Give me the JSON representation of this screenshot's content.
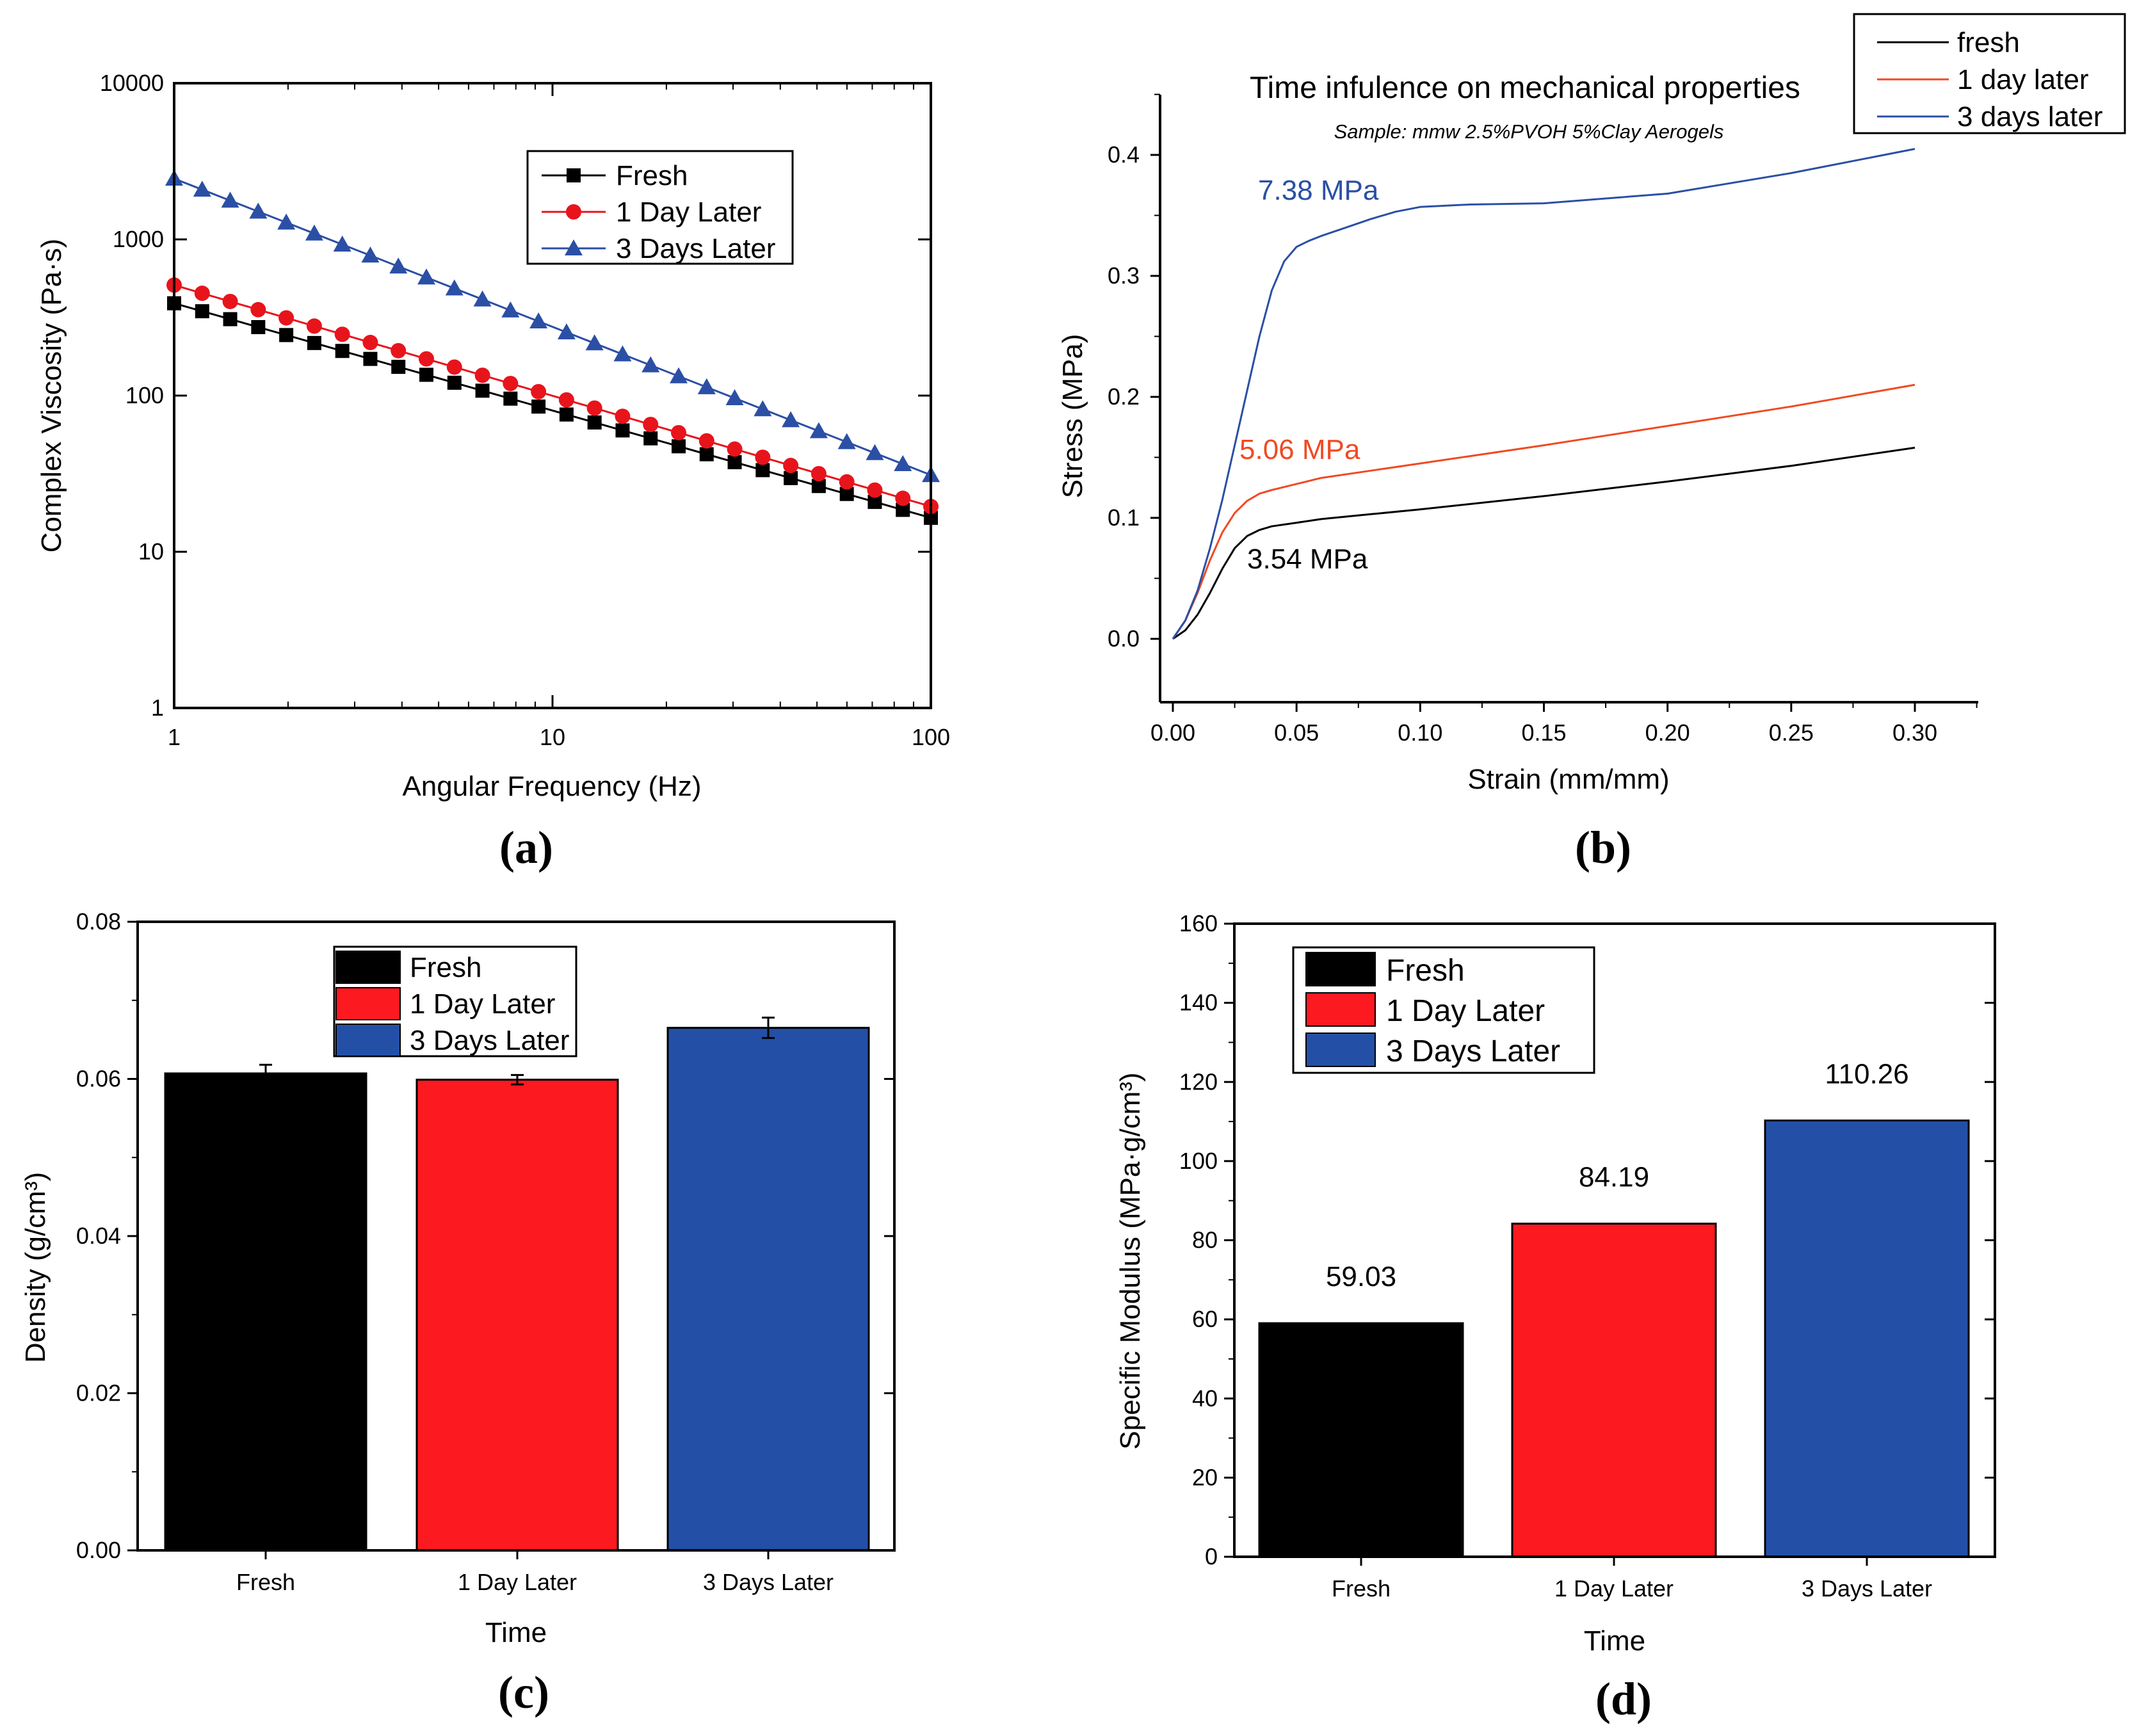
{
  "chart_data": [
    {
      "id": "a",
      "type": "line",
      "panel_label": "(a)",
      "title": "",
      "xlabel": "Angular Frequency (Hz)",
      "ylabel": "Complex Viscosity (Pa·s)",
      "xscale": "log",
      "yscale": "log",
      "xlim": [
        1,
        100
      ],
      "ylim": [
        1,
        10000
      ],
      "xticks": [
        "1",
        "10",
        "100"
      ],
      "yticks": [
        "1",
        "10",
        "100",
        "1000",
        "10000"
      ],
      "legend_position": "top-right",
      "series": [
        {
          "name": "Fresh",
          "marker": "square",
          "color": "#000000",
          "start": 390,
          "end": 16.5
        },
        {
          "name": "1 Day Later",
          "marker": "circle",
          "color": "#e8141c",
          "start": 510,
          "end": 19.5
        },
        {
          "name": "3 Days Later",
          "marker": "triangle",
          "color": "#2b4fa5",
          "start": 2450,
          "end": 31
        }
      ],
      "points_per_series": 28
    },
    {
      "id": "b",
      "type": "line",
      "panel_label": "(b)",
      "title": "Time infulence on mechanical properties",
      "subtitle": "Sample: mmw 2.5%PVOH 5%Clay Aerogels",
      "xlabel": "Strain (mm/mm)",
      "ylabel": "Stress (MPa)",
      "xlim": [
        0,
        0.325
      ],
      "ylim": [
        -0.05,
        0.45
      ],
      "xticks": [
        "0.00",
        "0.05",
        "0.10",
        "0.15",
        "0.20",
        "0.25",
        "0.30"
      ],
      "yticks": [
        "0.0",
        "0.1",
        "0.2",
        "0.3",
        "0.4"
      ],
      "legend_position": "top-right",
      "series": [
        {
          "name": "fresh",
          "color": "#000000",
          "annotation": "3.54 MPa",
          "x": [
            0,
            0.005,
            0.01,
            0.015,
            0.02,
            0.025,
            0.03,
            0.035,
            0.04,
            0.05,
            0.06,
            0.08,
            0.1,
            0.15,
            0.2,
            0.25,
            0.3
          ],
          "y": [
            0,
            0.007,
            0.02,
            0.038,
            0.058,
            0.075,
            0.085,
            0.09,
            0.093,
            0.096,
            0.099,
            0.103,
            0.107,
            0.118,
            0.13,
            0.143,
            0.158
          ]
        },
        {
          "name": "1 day later",
          "color": "#f04a23",
          "annotation": "5.06 MPa",
          "x": [
            0,
            0.005,
            0.01,
            0.015,
            0.02,
            0.025,
            0.03,
            0.035,
            0.04,
            0.05,
            0.06,
            0.08,
            0.1,
            0.15,
            0.2,
            0.25,
            0.3
          ],
          "y": [
            0,
            0.015,
            0.038,
            0.065,
            0.088,
            0.104,
            0.114,
            0.12,
            0.123,
            0.128,
            0.133,
            0.139,
            0.145,
            0.16,
            0.176,
            0.192,
            0.21
          ]
        },
        {
          "name": "3 days later",
          "color": "#2b4fa5",
          "annotation": "7.38 MPa",
          "x": [
            0,
            0.005,
            0.01,
            0.015,
            0.02,
            0.025,
            0.03,
            0.035,
            0.04,
            0.045,
            0.05,
            0.055,
            0.06,
            0.07,
            0.08,
            0.09,
            0.1,
            0.12,
            0.15,
            0.2,
            0.25,
            0.3
          ],
          "y": [
            0,
            0.015,
            0.04,
            0.075,
            0.115,
            0.16,
            0.205,
            0.25,
            0.288,
            0.312,
            0.324,
            0.329,
            0.333,
            0.34,
            0.347,
            0.353,
            0.357,
            0.359,
            0.36,
            0.368,
            0.385,
            0.405
          ]
        }
      ]
    },
    {
      "id": "c",
      "type": "bar",
      "panel_label": "(c)",
      "xlabel": "Time",
      "ylabel": "Density (g/cm³)",
      "ylim": [
        0,
        0.08
      ],
      "yticks": [
        "0.00",
        "0.02",
        "0.04",
        "0.06",
        "0.08"
      ],
      "categories": [
        "Fresh",
        "1 Day Later",
        "3 Days Later"
      ],
      "values": [
        0.0607,
        0.0599,
        0.0665
      ],
      "errors": [
        0.0011,
        0.0006,
        0.0013
      ],
      "colors": [
        "#000000",
        "#fc1920",
        "#2350a6"
      ],
      "legend_position": "top-left",
      "legend": [
        "Fresh",
        "1 Day Later",
        "3 Days Later"
      ]
    },
    {
      "id": "d",
      "type": "bar",
      "panel_label": "(d)",
      "xlabel": "Time",
      "ylabel": "Specific Modulus (MPa·g/cm³)",
      "ylim": [
        0,
        160
      ],
      "yticks": [
        "0",
        "20",
        "40",
        "60",
        "80",
        "100",
        "120",
        "140",
        "160"
      ],
      "categories": [
        "Fresh",
        "1 Day Later",
        "3 Days Later"
      ],
      "values": [
        59.03,
        84.19,
        110.26
      ],
      "value_labels": [
        "59.03",
        "84.19",
        "110.26"
      ],
      "colors": [
        "#000000",
        "#fc1920",
        "#2350a6"
      ],
      "legend_position": "top-left",
      "legend": [
        "Fresh",
        "1 Day Later",
        "3 Days Later"
      ]
    }
  ]
}
